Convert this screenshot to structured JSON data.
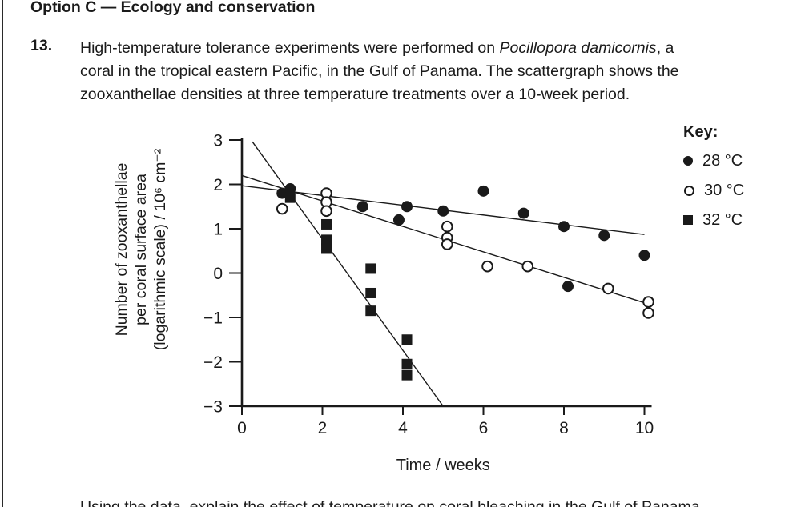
{
  "page": {
    "header": "Option C — Ecology and conservation",
    "question_number": "13.",
    "question": {
      "line1_pre": "High-temperature tolerance experiments were performed on ",
      "line1_italic": "Pocillopora damicornis",
      "line1_post": ", a",
      "line2": "coral in the tropical eastern Pacific, in the Gulf of Panama. The scattergraph shows the",
      "line3": "zooxanthellae densities at three temperature treatments over a 10-week period."
    },
    "bottom_clipped_text": "Using the data, explain the effect of temperature on coral bleaching in the Gulf of Panama.",
    "colors": {
      "ink": "#1a1a1a",
      "background": "#ffffff"
    }
  },
  "chart_data": {
    "type": "scatter",
    "title": "",
    "xlabel": "Time / weeks",
    "ylabel_lines": [
      "Number of zooxanthellae",
      "per coral surface area",
      "(logarithmic scale) / 10⁶ cm⁻²"
    ],
    "xlim": [
      0,
      10
    ],
    "ylim": [
      -3,
      3
    ],
    "x_ticks": [
      0,
      2,
      4,
      6,
      8,
      10
    ],
    "y_ticks": [
      3,
      2,
      1,
      0,
      -1,
      -2,
      -3
    ],
    "grid": false,
    "legend": {
      "title": "Key:",
      "position": "right",
      "entries": [
        {
          "label": "28 °C",
          "marker": "filled-circle"
        },
        {
          "label": "30 °C",
          "marker": "open-circle"
        },
        {
          "label": "32 °C",
          "marker": "filled-square"
        }
      ]
    },
    "series": [
      {
        "name": "28 °C",
        "marker": "filled-circle",
        "points": [
          [
            1,
            1.8
          ],
          [
            1.2,
            1.9
          ],
          [
            3,
            1.5
          ],
          [
            3.9,
            1.2
          ],
          [
            4.1,
            1.5
          ],
          [
            5,
            1.4
          ],
          [
            6,
            1.85
          ],
          [
            7,
            1.35
          ],
          [
            8,
            1.05
          ],
          [
            8.1,
            -0.3
          ],
          [
            9,
            0.85
          ],
          [
            10,
            0.4
          ]
        ],
        "trend_line": {
          "x1": 0,
          "y1": 1.97,
          "x2": 10,
          "y2": 0.87
        }
      },
      {
        "name": "30 °C",
        "marker": "open-circle",
        "points": [
          [
            1,
            1.45
          ],
          [
            2.1,
            1.8
          ],
          [
            2.1,
            1.6
          ],
          [
            2.1,
            1.4
          ],
          [
            5.1,
            1.05
          ],
          [
            5.1,
            0.8
          ],
          [
            5.1,
            0.65
          ],
          [
            6.1,
            0.15
          ],
          [
            7.1,
            0.15
          ],
          [
            9.1,
            -0.35
          ],
          [
            10.1,
            -0.65
          ],
          [
            10.1,
            -0.9
          ]
        ],
        "trend_line": {
          "x1": 0,
          "y1": 2.2,
          "x2": 10,
          "y2": -0.67
        }
      },
      {
        "name": "32 °C",
        "marker": "filled-square",
        "points": [
          [
            1.2,
            1.7
          ],
          [
            2.1,
            1.1
          ],
          [
            2.1,
            0.75
          ],
          [
            2.1,
            0.55
          ],
          [
            3.2,
            0.1
          ],
          [
            3.2,
            -0.45
          ],
          [
            3.2,
            -0.85
          ],
          [
            4.1,
            -1.5
          ],
          [
            4.1,
            -2.05
          ],
          [
            4.1,
            -2.3
          ]
        ],
        "trend_line": {
          "x1": 0.26,
          "y1": 2.96,
          "x2": 5.0,
          "y2": -3.0
        }
      }
    ]
  }
}
